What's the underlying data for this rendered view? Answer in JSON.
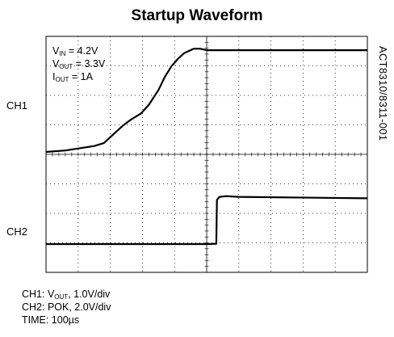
{
  "title": "Startup Waveform",
  "side_label": "ACT8310/8311-001",
  "conditions": {
    "vin": {
      "sym": "V",
      "sub": "IN",
      "value": " = 4.2V"
    },
    "vout": {
      "sym": "V",
      "sub": "OUT",
      "value": " = 3.3V"
    },
    "iout": {
      "sym": "I",
      "sub": "OUT",
      "value": " = 1A"
    }
  },
  "channels": {
    "ch1_label": "CH1",
    "ch2_label": "CH2"
  },
  "footer": {
    "ch1": {
      "prefix": "CH1: V",
      "sub": "OUT",
      "rest": ",  1.0V/div"
    },
    "ch2": "CH2: POK, 2.0V/div",
    "time": "TIME: 100µs"
  },
  "colors": {
    "trace": "#000000",
    "grid": "#000000",
    "background": "#ffffff"
  },
  "chart_data": {
    "type": "line",
    "title": "Startup Waveform",
    "x_units": "µs",
    "x_range": [
      0,
      1000
    ],
    "grid": true,
    "divisions": {
      "x": 10,
      "y": 8
    },
    "series": [
      {
        "name": "CH1",
        "scale": "1.0V/div",
        "x": [
          0,
          60,
          150,
          180,
          210,
          240,
          265,
          295,
          320,
          350,
          370,
          390,
          410,
          430,
          460,
          480,
          500,
          1000
        ],
        "y": [
          0,
          0.05,
          0.2,
          0.3,
          0.6,
          0.9,
          1.1,
          1.3,
          1.6,
          2.1,
          2.55,
          2.9,
          3.15,
          3.35,
          3.5,
          3.5,
          3.45,
          3.45
        ]
      },
      {
        "name": "CH2",
        "scale": "2.0V/div",
        "x": [
          0,
          250,
          500,
          530,
          532,
          540,
          560,
          600,
          1000
        ],
        "y": [
          0,
          0,
          0,
          0.02,
          3.0,
          3.2,
          3.25,
          3.2,
          3.1
        ]
      }
    ]
  }
}
